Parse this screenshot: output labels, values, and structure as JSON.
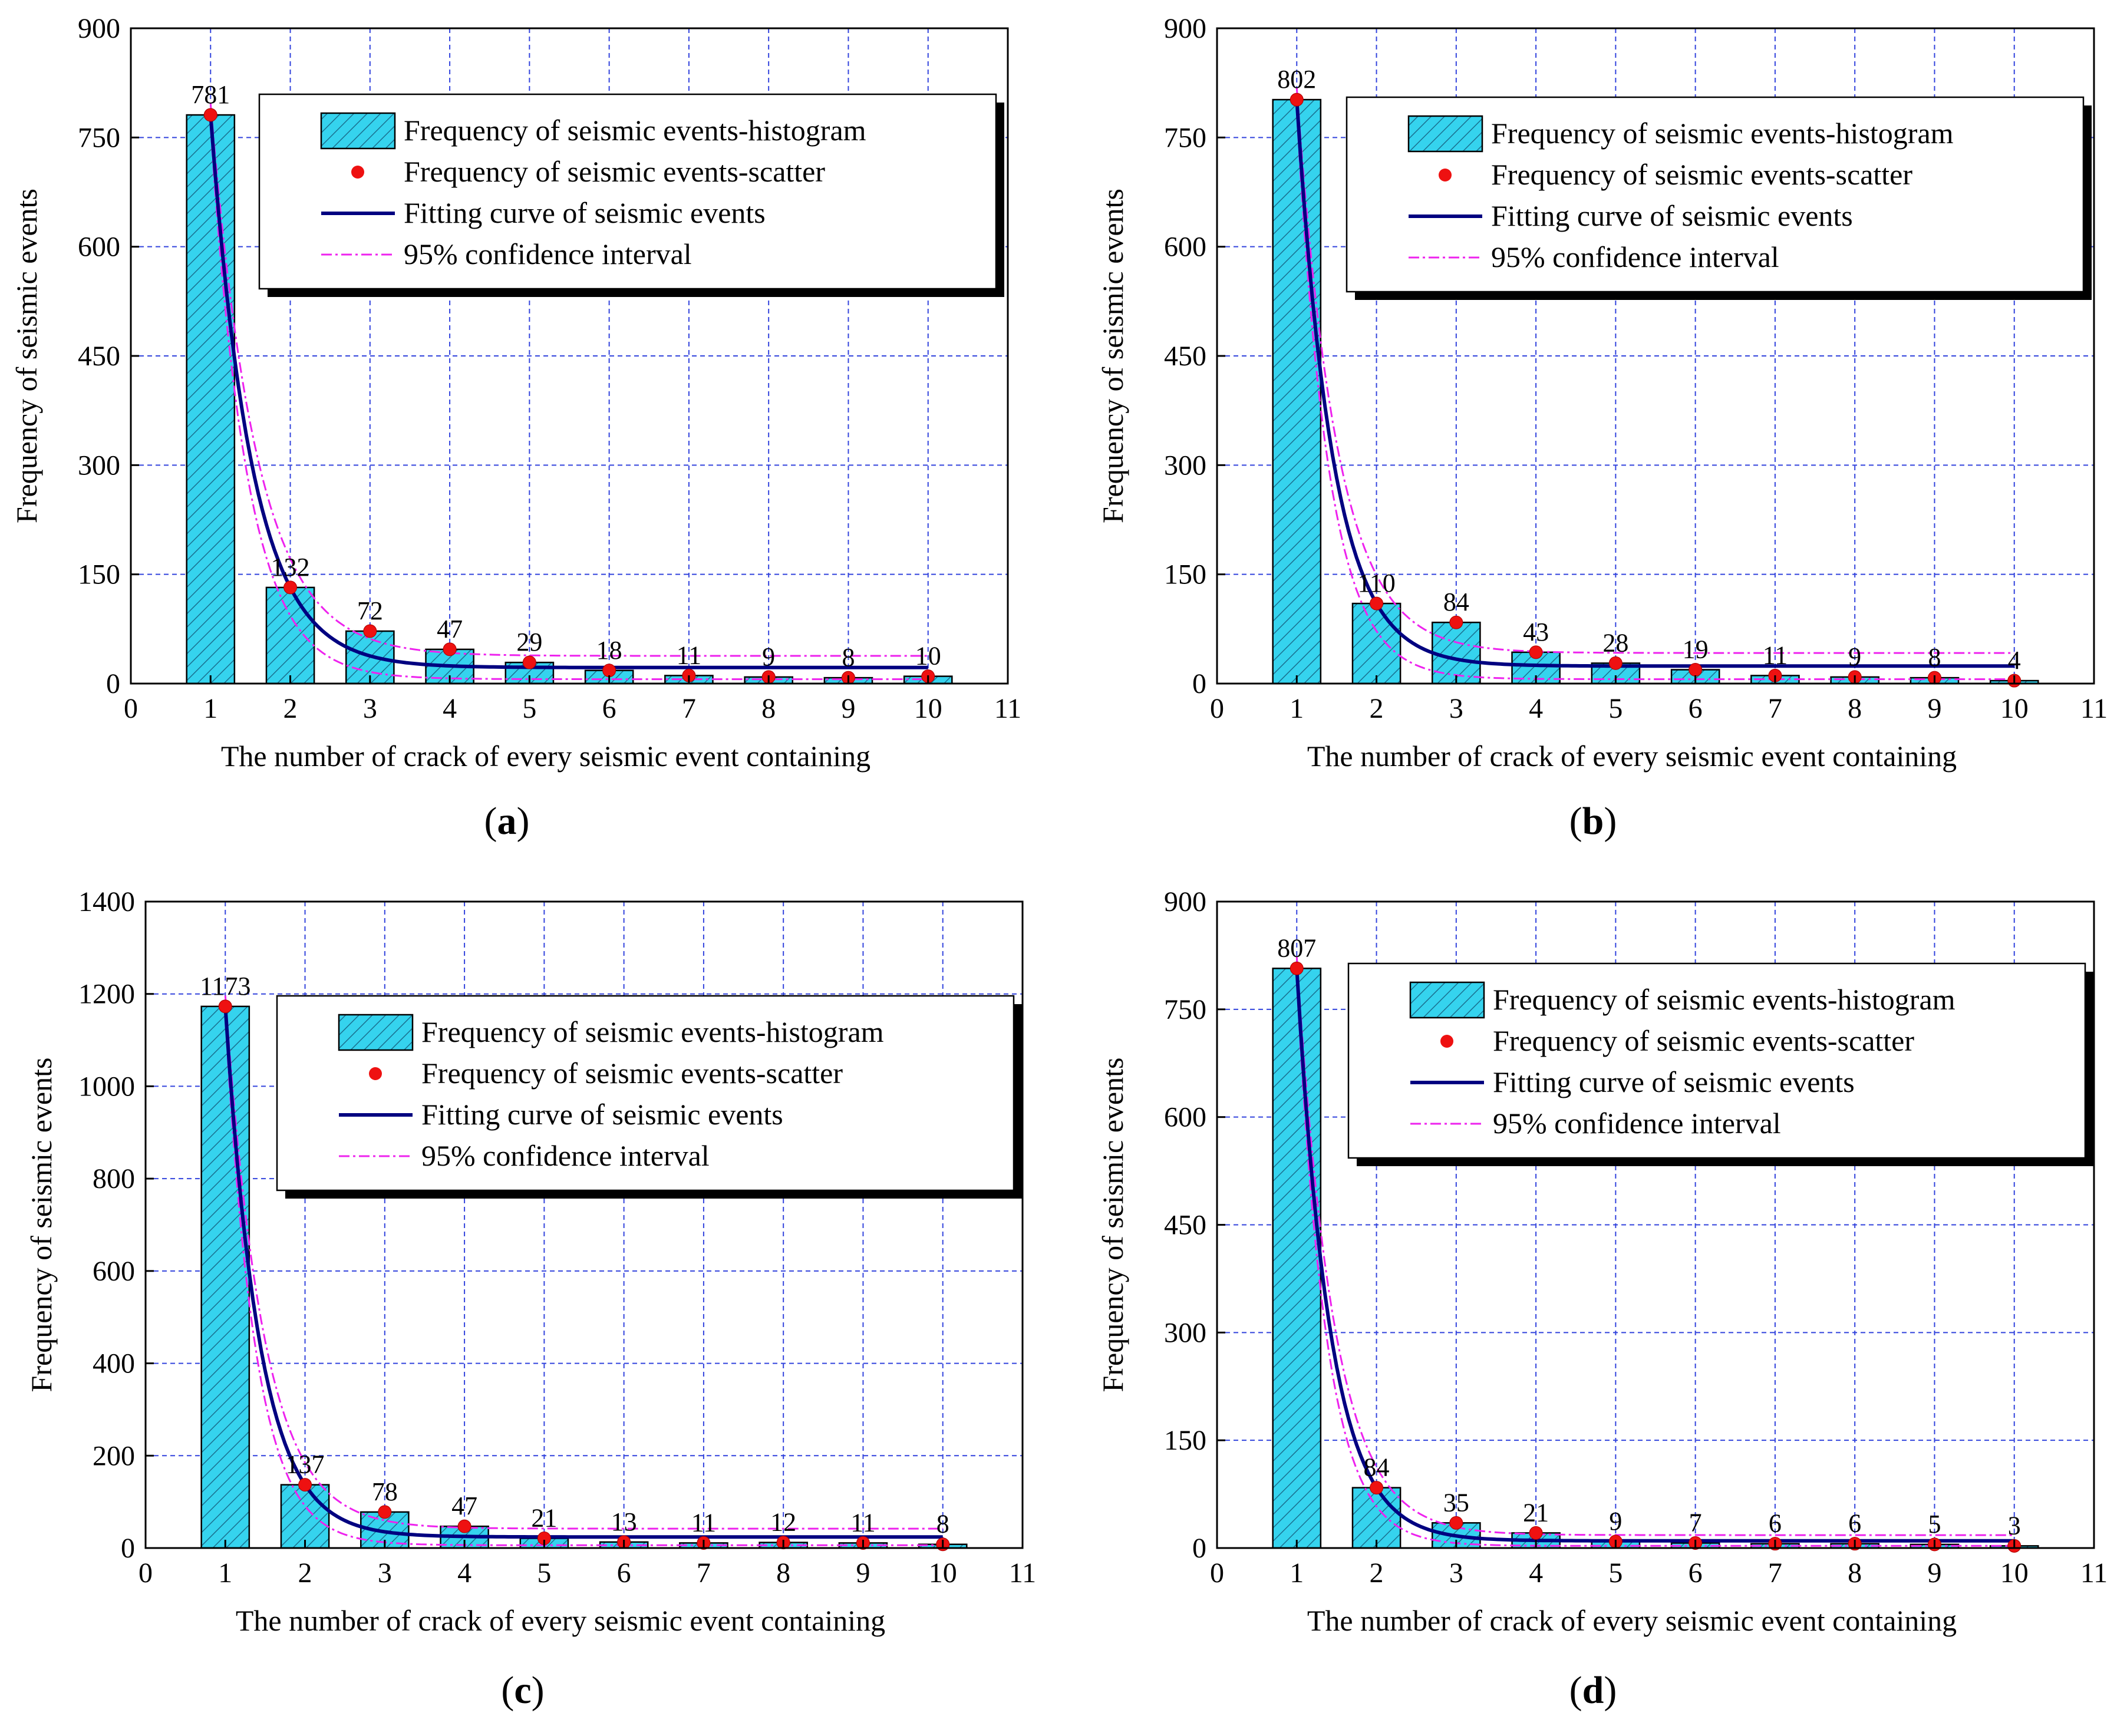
{
  "figure": {
    "legend_labels": {
      "histogram": "Frequency of seismic events-histogram",
      "scatter": "Frequency of seismic events-scatter",
      "fit": "Fitting curve of seismic events",
      "ci": "95% confidence interval"
    },
    "colors": {
      "bar_fill": "#35d3ee",
      "bar_hatch": "#1a6f8f",
      "point": "#ee1111",
      "fit": "#000080",
      "ci": "#ee22ee",
      "grid": "#3344dd",
      "axis": "#000000"
    }
  },
  "chart_data": [
    {
      "panel": "a",
      "type": "bar",
      "xlabel": "The number of crack of every seismic event containing",
      "ylabel": "Frequency of seismic events",
      "x_ticks": [
        "0",
        "1",
        "2",
        "3",
        "4",
        "5",
        "6",
        "7",
        "8",
        "9",
        "10",
        "11"
      ],
      "y_ticks": [
        "0",
        "150",
        "300",
        "450",
        "600",
        "750",
        "900"
      ],
      "xlim": [
        0,
        11
      ],
      "ylim": [
        0,
        900
      ],
      "categories": [
        1,
        2,
        3,
        4,
        5,
        6,
        7,
        8,
        9,
        10
      ],
      "values": [
        781,
        132,
        72,
        47,
        29,
        18,
        11,
        9,
        8,
        10
      ],
      "labels": [
        "781",
        "132",
        "72",
        "47",
        "29",
        "18",
        "11",
        "9",
        "8",
        "10"
      ],
      "fit_asymptote": 22,
      "ci_upper_asymptote": 38,
      "ci_lower_asymptote": 6
    },
    {
      "panel": "b",
      "type": "bar",
      "xlabel": "The number of crack of every seismic event containing",
      "ylabel": "Frequency of seismic events",
      "x_ticks": [
        "0",
        "1",
        "2",
        "3",
        "4",
        "5",
        "6",
        "7",
        "8",
        "9",
        "10",
        "11"
      ],
      "y_ticks": [
        "0",
        "150",
        "300",
        "450",
        "600",
        "750",
        "900"
      ],
      "xlim": [
        0,
        11
      ],
      "ylim": [
        0,
        900
      ],
      "categories": [
        1,
        2,
        3,
        4,
        5,
        6,
        7,
        8,
        9,
        10
      ],
      "values": [
        802,
        110,
        84,
        43,
        28,
        19,
        11,
        9,
        8,
        4
      ],
      "labels": [
        "802",
        "110",
        "84",
        "43",
        "28",
        "19",
        "11",
        "9",
        "8",
        "4"
      ],
      "fit_asymptote": 24,
      "ci_upper_asymptote": 42,
      "ci_lower_asymptote": 6
    },
    {
      "panel": "c",
      "type": "bar",
      "xlabel": "The number of crack of every seismic event containing",
      "ylabel": "Frequency of seismic events",
      "x_ticks": [
        "0",
        "1",
        "2",
        "3",
        "4",
        "5",
        "6",
        "7",
        "8",
        "9",
        "10",
        "11"
      ],
      "y_ticks": [
        "0",
        "200",
        "400",
        "600",
        "800",
        "1000",
        "1200",
        "1400"
      ],
      "xlim": [
        0,
        11
      ],
      "ylim": [
        0,
        1400
      ],
      "categories": [
        1,
        2,
        3,
        4,
        5,
        6,
        7,
        8,
        9,
        10
      ],
      "values": [
        1173,
        137,
        78,
        47,
        21,
        13,
        11,
        12,
        11,
        8
      ],
      "labels": [
        "1173",
        "137",
        "78",
        "47",
        "21",
        "13",
        "11",
        "12",
        "11",
        "8"
      ],
      "fit_asymptote": 24,
      "ci_upper_asymptote": 42,
      "ci_lower_asymptote": 6
    },
    {
      "panel": "d",
      "type": "bar",
      "xlabel": "The number of crack of every seismic event containing",
      "ylabel": "Frequency of seismic events",
      "x_ticks": [
        "0",
        "1",
        "2",
        "3",
        "4",
        "5",
        "6",
        "7",
        "8",
        "9",
        "10",
        "11"
      ],
      "y_ticks": [
        "0",
        "150",
        "300",
        "450",
        "600",
        "750",
        "900"
      ],
      "xlim": [
        0,
        11
      ],
      "ylim": [
        0,
        900
      ],
      "categories": [
        1,
        2,
        3,
        4,
        5,
        6,
        7,
        8,
        9,
        10
      ],
      "values": [
        807,
        84,
        35,
        21,
        9,
        7,
        6,
        6,
        5,
        3
      ],
      "labels": [
        "807",
        "84",
        "35",
        "21",
        "9",
        "7",
        "6",
        "6",
        "5",
        "3"
      ],
      "fit_asymptote": 10,
      "ci_upper_asymptote": 18,
      "ci_lower_asymptote": 3
    }
  ],
  "captions": [
    "(a)",
    "(b)",
    "(c)",
    "(d)"
  ]
}
